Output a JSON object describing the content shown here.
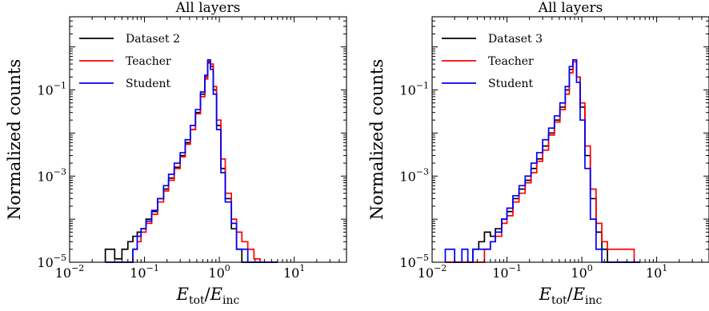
{
  "chart_data": [
    {
      "type": "line",
      "title": "All layers",
      "xlabel": {
        "main": "E",
        "sub1": "tot",
        "sep": "/",
        "main2": "E",
        "sub2": "inc"
      },
      "ylabel": "Normalized counts",
      "xscale": "log",
      "yscale": "log",
      "xlim": [
        0.01,
        50
      ],
      "ylim": [
        1e-05,
        5
      ],
      "legend_position": "top-left",
      "xticks": [
        {
          "base": "10",
          "exp": "−2",
          "value": 0.01
        },
        {
          "base": "10",
          "exp": "−1",
          "value": 0.1
        },
        {
          "base": "10",
          "exp": "0",
          "value": 1
        },
        {
          "base": "10",
          "exp": "1",
          "value": 10
        }
      ],
      "yticks": [
        {
          "base": "10",
          "exp": "−5",
          "value": 1e-05
        },
        {
          "base": "10",
          "exp": "−3",
          "value": 0.001
        },
        {
          "base": "10",
          "exp": "−1",
          "value": 0.1
        }
      ],
      "bin_edges": [
        0.03,
        0.04,
        0.05,
        0.06,
        0.07,
        0.08,
        0.09,
        0.105,
        0.125,
        0.15,
        0.18,
        0.21,
        0.25,
        0.3,
        0.35,
        0.41,
        0.48,
        0.56,
        0.64,
        0.7,
        0.76,
        0.83,
        0.92,
        1.05,
        1.2,
        1.45,
        1.7,
        2.0,
        2.4,
        2.9,
        3.5,
        4.5,
        6.0
      ],
      "series": [
        {
          "name": "Dataset 2",
          "color": "#000000",
          "values": [
            2e-05,
            1.2e-05,
            2e-05,
            3e-05,
            4e-05,
            5e-05,
            6e-05,
            0.0001,
            0.00015,
            0.0003,
            0.0005,
            0.0009,
            0.0016,
            0.003,
            0.006,
            0.012,
            0.03,
            0.08,
            0.2,
            0.45,
            0.35,
            0.1,
            0.015,
            0.0015,
            0.0003,
            6e-05,
            2e-05,
            1e-05,
            1e-05,
            1e-05,
            1e-05,
            1e-05
          ]
        },
        {
          "name": "Teacher",
          "color": "#ff0000",
          "values": [
            1e-05,
            1e-05,
            1e-05,
            1e-05,
            2e-05,
            3e-05,
            5e-05,
            8e-05,
            0.00013,
            0.00025,
            0.00045,
            0.0008,
            0.0015,
            0.0028,
            0.0055,
            0.012,
            0.028,
            0.07,
            0.18,
            0.42,
            0.4,
            0.12,
            0.02,
            0.0025,
            0.0004,
            0.0001,
            5e-05,
            3e-05,
            2e-05,
            1.2e-05,
            1e-05,
            1e-05
          ]
        },
        {
          "name": "Student",
          "color": "#0000ff",
          "values": [
            1e-05,
            1e-05,
            1e-05,
            1e-05,
            2e-05,
            4e-05,
            6e-05,
            9e-05,
            0.00016,
            0.0003,
            0.0006,
            0.0011,
            0.002,
            0.0035,
            0.007,
            0.015,
            0.035,
            0.09,
            0.22,
            0.5,
            0.3,
            0.08,
            0.012,
            0.0012,
            0.00025,
            8e-05,
            2e-05,
            2e-05,
            1e-05,
            1e-05,
            1e-05,
            1e-05
          ]
        }
      ]
    },
    {
      "type": "line",
      "title": "All layers",
      "xlabel": {
        "main": "E",
        "sub1": "tot",
        "sep": "/",
        "main2": "E",
        "sub2": "inc"
      },
      "ylabel": "Normalized counts",
      "xscale": "log",
      "yscale": "log",
      "xlim": [
        0.01,
        50
      ],
      "ylim": [
        1e-05,
        5
      ],
      "legend_position": "top-left",
      "xticks": [
        {
          "base": "10",
          "exp": "−2",
          "value": 0.01
        },
        {
          "base": "10",
          "exp": "−1",
          "value": 0.1
        },
        {
          "base": "10",
          "exp": "0",
          "value": 1
        },
        {
          "base": "10",
          "exp": "1",
          "value": 10
        }
      ],
      "yticks": [
        {
          "base": "10",
          "exp": "−5",
          "value": 1e-05
        },
        {
          "base": "10",
          "exp": "−3",
          "value": 0.001
        },
        {
          "base": "10",
          "exp": "−1",
          "value": 0.1
        }
      ],
      "bin_edges": [
        0.015,
        0.02,
        0.025,
        0.03,
        0.035,
        0.042,
        0.05,
        0.06,
        0.07,
        0.085,
        0.1,
        0.12,
        0.145,
        0.175,
        0.21,
        0.25,
        0.3,
        0.36,
        0.43,
        0.51,
        0.6,
        0.68,
        0.76,
        0.85,
        0.95,
        1.1,
        1.3,
        1.55,
        1.85,
        2.2,
        2.7,
        3.3,
        4.0,
        5.0,
        6.0
      ],
      "series": [
        {
          "name": "Dataset 3",
          "color": "#000000",
          "values": [
            1e-05,
            1e-05,
            1e-05,
            1e-05,
            2e-05,
            3e-05,
            5e-05,
            4e-05,
            6e-05,
            0.0001,
            0.00015,
            0.0003,
            0.0005,
            0.0008,
            0.0015,
            0.0025,
            0.005,
            0.01,
            0.02,
            0.04,
            0.1,
            0.3,
            0.45,
            0.2,
            0.04,
            0.003,
            0.0003,
            5e-05,
            2e-05,
            1e-05,
            1e-05,
            1e-05,
            1e-05,
            1e-05
          ]
        },
        {
          "name": "Teacher",
          "color": "#ff0000",
          "values": [
            1e-05,
            1e-05,
            1e-05,
            1e-05,
            1e-05,
            1e-05,
            2e-05,
            3e-05,
            4e-05,
            8e-05,
            0.00012,
            0.00025,
            0.0004,
            0.0007,
            0.0012,
            0.0022,
            0.004,
            0.009,
            0.018,
            0.035,
            0.08,
            0.25,
            0.45,
            0.2,
            0.05,
            0.005,
            0.0005,
            8e-05,
            3e-05,
            2e-05,
            2e-05,
            2e-05,
            2e-05,
            1e-05
          ]
        },
        {
          "name": "Student",
          "color": "#0000ff",
          "values": [
            2e-05,
            1e-05,
            2e-05,
            1e-05,
            2e-05,
            2e-05,
            2e-05,
            3e-05,
            5e-05,
            0.0001,
            0.00018,
            0.00035,
            0.0006,
            0.001,
            0.002,
            0.0035,
            0.007,
            0.013,
            0.025,
            0.05,
            0.12,
            0.35,
            0.5,
            0.15,
            0.02,
            0.0015,
            0.0001,
            2e-05,
            1e-05,
            1e-05,
            1e-05,
            1e-05,
            1e-05,
            1e-05
          ]
        }
      ]
    }
  ]
}
